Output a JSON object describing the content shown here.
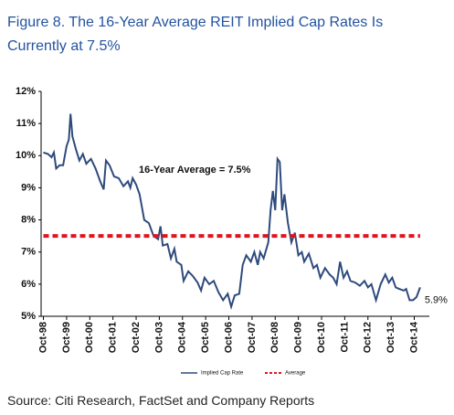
{
  "chart_data": {
    "type": "line",
    "title": "Figure 8. The 16-Year Average REIT Implied Cap Rates Is Currently at 7.5%",
    "source": "Source: Citi Research, FactSet and Company Reports",
    "annotations": [
      "16-Year Average = 7.5%",
      "5.9%"
    ],
    "xlim": [
      1998.65,
      2015.4
    ],
    "xticks": [
      {
        "value": 1998.75,
        "label": "Oct-98"
      },
      {
        "value": 1999.75,
        "label": "Oct-99"
      },
      {
        "value": 2000.75,
        "label": "Oct-00"
      },
      {
        "value": 2001.75,
        "label": "Oct-01"
      },
      {
        "value": 2002.75,
        "label": "Oct-02"
      },
      {
        "value": 2003.75,
        "label": "Oct-03"
      },
      {
        "value": 2004.75,
        "label": "Oct-04"
      },
      {
        "value": 2005.75,
        "label": "Oct-05"
      },
      {
        "value": 2006.75,
        "label": "Oct-06"
      },
      {
        "value": 2007.75,
        "label": "Oct-07"
      },
      {
        "value": 2008.75,
        "label": "Oct-08"
      },
      {
        "value": 2009.75,
        "label": "Oct-09"
      },
      {
        "value": 2010.75,
        "label": "Oct-10"
      },
      {
        "value": 2011.75,
        "label": "Oct-11"
      },
      {
        "value": 2012.75,
        "label": "Oct-12"
      },
      {
        "value": 2013.75,
        "label": "Oct-13"
      },
      {
        "value": 2014.75,
        "label": "Oct-14"
      }
    ],
    "ylim": [
      5,
      12
    ],
    "yticks": [
      {
        "value": 5,
        "label": "5%"
      },
      {
        "value": 6,
        "label": "6%"
      },
      {
        "value": 7,
        "label": "7%"
      },
      {
        "value": 8,
        "label": "8%"
      },
      {
        "value": 9,
        "label": "9%"
      },
      {
        "value": 10,
        "label": "10%"
      },
      {
        "value": 11,
        "label": "11%"
      },
      {
        "value": 12,
        "label": "12%"
      }
    ],
    "series": [
      {
        "name": "Implied Cap Rate",
        "color": "#2e4a7d",
        "style": "solid",
        "x": [
          1998.75,
          1998.95,
          1999.1,
          1999.2,
          1999.3,
          1999.45,
          1999.6,
          1999.75,
          1999.85,
          1999.92,
          2000.0,
          2000.15,
          2000.3,
          2000.45,
          2000.6,
          2000.8,
          2001.0,
          2001.2,
          2001.35,
          2001.45,
          2001.6,
          2001.8,
          2002.0,
          2002.2,
          2002.4,
          2002.5,
          2002.6,
          2002.75,
          2002.9,
          2003.1,
          2003.3,
          2003.5,
          2003.7,
          2003.8,
          2003.9,
          2004.1,
          2004.25,
          2004.4,
          2004.5,
          2004.7,
          2004.8,
          2005.0,
          2005.2,
          2005.4,
          2005.55,
          2005.7,
          2005.9,
          2006.1,
          2006.3,
          2006.5,
          2006.7,
          2006.85,
          2007.0,
          2007.2,
          2007.35,
          2007.5,
          2007.7,
          2007.85,
          2008.0,
          2008.1,
          2008.25,
          2008.45,
          2008.55,
          2008.65,
          2008.75,
          2008.85,
          2008.95,
          2009.05,
          2009.15,
          2009.3,
          2009.45,
          2009.6,
          2009.75,
          2009.9,
          2010.0,
          2010.2,
          2010.4,
          2010.55,
          2010.7,
          2010.9,
          2011.1,
          2011.25,
          2011.4,
          2011.55,
          2011.7,
          2011.85,
          2012.0,
          2012.2,
          2012.4,
          2012.6,
          2012.75,
          2012.9,
          2013.1,
          2013.3,
          2013.5,
          2013.65,
          2013.8,
          2013.95,
          2014.1,
          2014.3,
          2014.4,
          2014.55,
          2014.7,
          2014.85,
          2015.0
        ],
        "values": [
          10.1,
          10.05,
          9.95,
          10.1,
          9.6,
          9.7,
          9.7,
          10.3,
          10.5,
          11.3,
          10.6,
          10.2,
          9.85,
          10.05,
          9.75,
          9.9,
          9.6,
          9.2,
          8.95,
          9.85,
          9.7,
          9.35,
          9.3,
          9.05,
          9.2,
          9.0,
          9.3,
          9.1,
          8.8,
          8.0,
          7.9,
          7.5,
          7.4,
          7.8,
          7.2,
          7.25,
          6.8,
          7.1,
          6.7,
          6.6,
          6.1,
          6.4,
          6.25,
          6.05,
          5.8,
          6.2,
          6.0,
          6.1,
          5.75,
          5.5,
          5.7,
          5.3,
          5.65,
          5.7,
          6.6,
          6.9,
          6.7,
          7.0,
          6.6,
          7.0,
          6.8,
          7.3,
          8.3,
          8.9,
          8.3,
          9.9,
          9.8,
          8.3,
          8.8,
          7.9,
          7.3,
          7.6,
          6.9,
          7.0,
          6.7,
          6.95,
          6.5,
          6.6,
          6.2,
          6.5,
          6.3,
          6.2,
          6.0,
          6.7,
          6.2,
          6.4,
          6.1,
          6.05,
          5.95,
          6.1,
          5.9,
          6.0,
          5.5,
          6.0,
          6.3,
          6.05,
          6.2,
          5.9,
          5.85,
          5.8,
          5.85,
          5.5,
          5.5,
          5.6,
          5.9
        ]
      },
      {
        "name": "Average",
        "color": "#e0141e",
        "style": "dashed",
        "x": [
          1998.75,
          2015.0
        ],
        "values": [
          7.5,
          7.5
        ]
      }
    ]
  }
}
